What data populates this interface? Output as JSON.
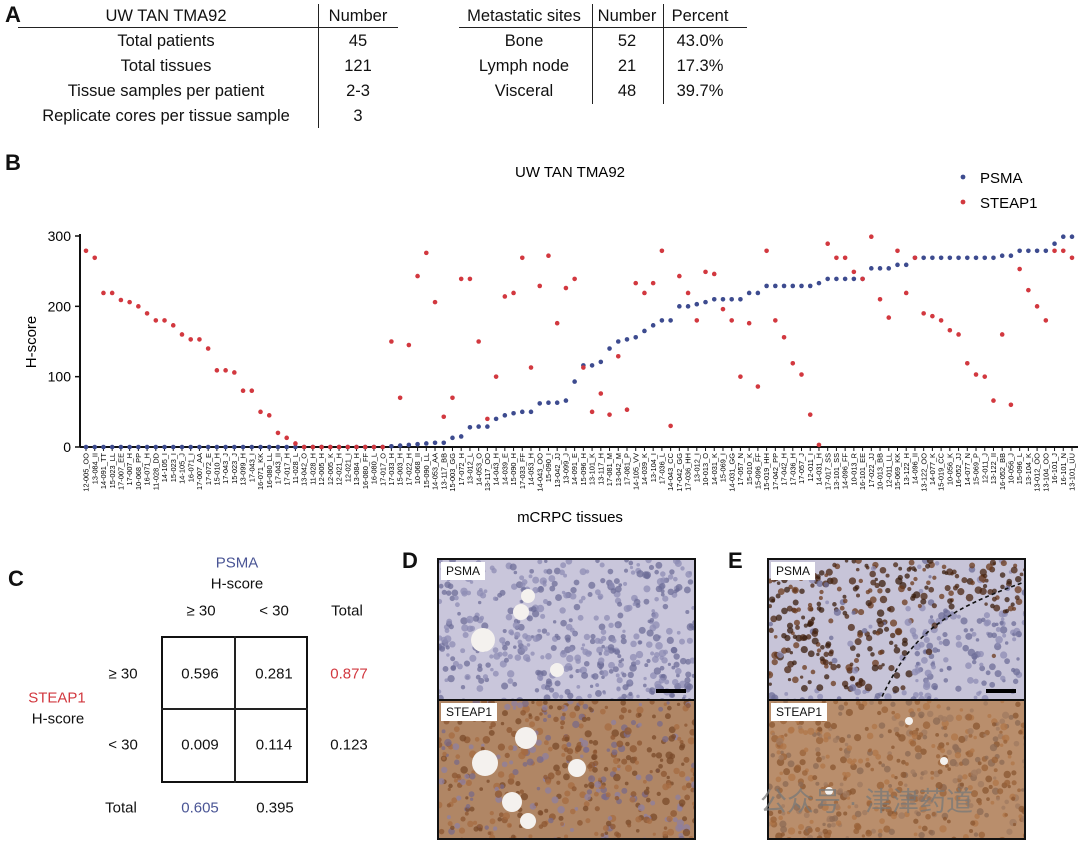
{
  "panels": {
    "a": "A",
    "b": "B",
    "c": "C",
    "d": "D",
    "e": "E"
  },
  "cohort_table": {
    "headers": [
      "UW TAN TMA92",
      "Number"
    ],
    "rows": [
      [
        "Total patients",
        "45"
      ],
      [
        "Total tissues",
        "121"
      ],
      [
        "Tissue samples per patient",
        "2-3"
      ],
      [
        "Replicate cores per tissue sample",
        "3"
      ]
    ]
  },
  "sites_table": {
    "headers": [
      "Metastatic sites",
      "Number",
      "Percent"
    ],
    "rows": [
      [
        "Bone",
        "52",
        "43.0%"
      ],
      [
        "Lymph node",
        "21",
        "17.3%"
      ],
      [
        "Visceral",
        "48",
        "39.7%"
      ]
    ]
  },
  "chart_data": {
    "type": "scatter",
    "title": "UW TAN TMA92",
    "xlabel": "mCRPC tissues",
    "ylabel": "H-score",
    "ylim": [
      0,
      300
    ],
    "yticks": [
      0,
      100,
      200,
      300
    ],
    "grid": false,
    "legend_position": "top-right",
    "categories": [
      "12-005_OO",
      "13-084_II",
      "14-091_TT",
      "15-023_LL",
      "17-007_EE",
      "17-007_H",
      "10-068_PP",
      "16-071_H",
      "11-028_DD",
      "14-105_I",
      "15-023_I",
      "14-105_J",
      "16-071_I",
      "17-007_AA",
      "17-072_E",
      "15-010_H",
      "17-043_J",
      "15-023_J",
      "13-099_H",
      "17-043_I",
      "16-071_KK",
      "16-080_LL",
      "17-043_II",
      "17-017_H",
      "11-028_L",
      "13-042_O",
      "11-028_H",
      "12-005_H",
      "12-005_K",
      "12-021_H",
      "12-021_I",
      "13-084_H",
      "16-080_FF",
      "16-080_L",
      "17-017_O",
      "17-033_H",
      "15-003_H",
      "17-022_H",
      "10-068_II",
      "15-090_LL",
      "14-053_AA",
      "13-117_BB",
      "15-003_GG",
      "17-072_H",
      "13-012_L",
      "14-053_O",
      "13-117_OO",
      "14-043_H",
      "14-039_E",
      "15-090_H",
      "17-033_FF",
      "14-053_H",
      "14-043_OO",
      "15-090_I",
      "13-042_JJ",
      "13-099_J",
      "14-091_E",
      "15-096_H",
      "13-101_K",
      "13-117_H",
      "17-081_M",
      "13-042_M",
      "17-081_P",
      "14-105_VV",
      "14-039_K",
      "13-104_I",
      "17-036_L",
      "14-043_CC",
      "17-042_GG",
      "17-036_HH",
      "13-012_I",
      "10-013_O",
      "14-031_K",
      "15-069_I",
      "14-031_GG",
      "17-057_N",
      "15-010_K",
      "15-096_FF",
      "15-019_HH",
      "17-042_PP",
      "17-042_H",
      "17-036_H",
      "17-057_J",
      "12-011_I",
      "14-031_H",
      "17-017_SS",
      "13-101_SS",
      "14-096_FF",
      "10-013_R",
      "16-101_EE",
      "17-022_JJ",
      "10-013_BB",
      "12-011_LL",
      "15-069_KK",
      "13-122_H",
      "14-096_II",
      "13-122_OO",
      "14-077_K",
      "15-019_CC",
      "10-056_K",
      "16-052_JJ",
      "14-077_N",
      "15-069_P",
      "12-011_J",
      "13-122_II",
      "16-052_BB",
      "10-056_J",
      "15-096_L",
      "13-104_K",
      "13-012_OO",
      "13-104_OO",
      "16-101_J",
      "16-101_N",
      "13-101_UU"
    ],
    "series": [
      {
        "name": "PSMA",
        "color": "#3d4b8f",
        "values": [
          0,
          0,
          0,
          0,
          0,
          0,
          0,
          0,
          0,
          0,
          0,
          0,
          0,
          0,
          0,
          0,
          0,
          0,
          0,
          0,
          0,
          0,
          0,
          0,
          0,
          0,
          0,
          0,
          0,
          0,
          0,
          0,
          0,
          0,
          0,
          1,
          2,
          3,
          4,
          5,
          6,
          6,
          13,
          15,
          28,
          29,
          29,
          40,
          45,
          48,
          50,
          50,
          62,
          63,
          63,
          66,
          93,
          116,
          116,
          121,
          140,
          150,
          153,
          156,
          165,
          173,
          180,
          180,
          200,
          200,
          203,
          206,
          210,
          210,
          210,
          210,
          219,
          219,
          229,
          229,
          229,
          229,
          229,
          229,
          233,
          239,
          239,
          239,
          239,
          239,
          254,
          254,
          254,
          259,
          259,
          269,
          269,
          269,
          269,
          269,
          269,
          269,
          269,
          269,
          269,
          272,
          272,
          279,
          279,
          279,
          279,
          289,
          299,
          299
        ]
      },
      {
        "name": "STEAP1",
        "color": "#d2383f",
        "values": [
          279,
          269,
          219,
          219,
          209,
          206,
          200,
          190,
          180,
          180,
          173,
          160,
          153,
          153,
          140,
          109,
          109,
          106,
          80,
          80,
          50,
          45,
          20,
          13,
          5,
          0,
          0,
          0,
          0,
          0,
          0,
          0,
          0,
          0,
          0,
          150,
          70,
          145,
          243,
          276,
          206,
          43,
          70,
          239,
          239,
          150,
          40,
          100,
          214,
          219,
          269,
          113,
          229,
          272,
          176,
          226,
          239,
          113,
          50,
          76,
          46,
          129,
          53,
          233,
          219,
          233,
          279,
          30,
          243,
          219,
          180,
          249,
          246,
          196,
          180,
          100,
          176,
          86,
          279,
          180,
          156,
          119,
          103,
          46,
          3,
          289,
          269,
          269,
          249,
          239,
          299,
          210,
          184,
          279,
          219,
          269,
          190,
          186,
          180,
          166,
          160,
          119,
          103,
          100,
          66,
          160,
          60,
          253,
          223,
          200,
          180,
          279,
          279,
          269
        ]
      }
    ]
  },
  "contingency": {
    "col_title": "PSMA",
    "col_subtitle": "H-score",
    "row_title": "STEAP1",
    "row_subtitle": "H-score",
    "col_headers": [
      "≥ 30",
      "< 30",
      "Total"
    ],
    "row_headers": [
      "≥ 30",
      "< 30",
      "Total"
    ],
    "cells": [
      [
        "0.596",
        "0.281"
      ],
      [
        "0.009",
        "0.114"
      ]
    ],
    "row_totals": [
      "0.877",
      "0.123"
    ],
    "col_totals": [
      "0.605",
      "0.395"
    ],
    "psma_color": "#4a5595",
    "steap1_color": "#d2383f"
  },
  "images": {
    "d": {
      "top_label": "PSMA",
      "bottom_label": "STEAP1"
    },
    "e": {
      "top_label": "PSMA",
      "bottom_label": "STEAP1"
    }
  },
  "watermark": "公众号 · 津津药道"
}
